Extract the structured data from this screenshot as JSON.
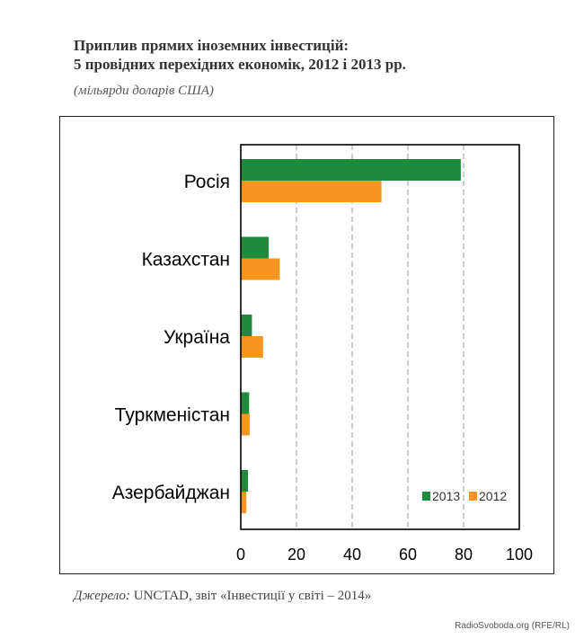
{
  "header": {
    "title_line1": "Приплив прямих іноземних інвестицій:",
    "title_line2": "5 провідних перехідних економік, 2012 і 2013 рр.",
    "subtitle": "(мільярди доларів США)"
  },
  "footer": {
    "source_label": "Джерело:",
    "source_text": "UNCTAD, звіт «Інвестиції у світі – 2014»",
    "credit": "RadioSvoboda.org (RFE/RL)"
  },
  "chart_data": {
    "type": "bar",
    "orientation": "horizontal",
    "categories": [
      "Росія",
      "Казахстан",
      "Україна",
      "Туркменістан",
      "Азербайджан"
    ],
    "series": [
      {
        "name": "2013",
        "color": "#1e8a3c",
        "values": [
          79,
          10,
          4,
          3,
          2.6
        ]
      },
      {
        "name": "2012",
        "color": "#f5961e",
        "values": [
          50.5,
          14,
          8,
          3.2,
          2
        ]
      }
    ],
    "xlim": [
      0,
      100
    ],
    "xticks": [
      0,
      20,
      40,
      60,
      80,
      100
    ],
    "grid": true,
    "legend": "bottom-right",
    "title": "Приплив прямих іноземних інвестицій: 5 провідних перехідних економік, 2012 і 2013 рр.",
    "xlabel": "",
    "ylabel": ""
  }
}
